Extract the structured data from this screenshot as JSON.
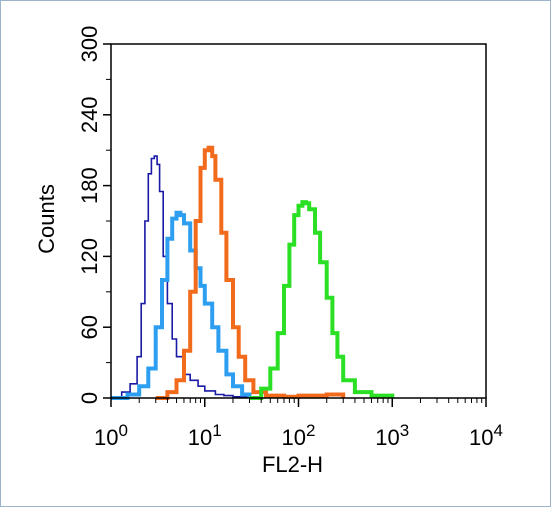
{
  "chart_data": {
    "type": "line",
    "title": "",
    "xlabel": "FL2-H",
    "ylabel": "Counts",
    "x_scale": "log",
    "xlim": [
      1,
      10000
    ],
    "ylim": [
      0,
      300
    ],
    "x_ticks": [
      {
        "value": 1,
        "base": "10",
        "exp": "0"
      },
      {
        "value": 10,
        "base": "10",
        "exp": "1"
      },
      {
        "value": 100,
        "base": "10",
        "exp": "2"
      },
      {
        "value": 1000,
        "base": "10",
        "exp": "3"
      },
      {
        "value": 10000,
        "base": "10",
        "exp": "4"
      }
    ],
    "y_ticks": [
      "0",
      "60",
      "120",
      "180",
      "240",
      "300"
    ],
    "grid": false,
    "legend": "none",
    "series": [
      {
        "color": "#1a1aa6",
        "x": [
          1.0,
          1.3,
          1.6,
          1.9,
          2.1,
          2.3,
          2.5,
          2.7,
          2.9,
          3.1,
          3.3,
          3.6,
          4.0,
          4.5,
          5.0,
          6.0,
          7.0,
          8.5,
          10,
          13,
          16,
          20,
          30
        ],
        "y": [
          0,
          5,
          12,
          35,
          80,
          150,
          190,
          203,
          205,
          198,
          175,
          120,
          80,
          50,
          35,
          20,
          15,
          10,
          6,
          3,
          2,
          1,
          0
        ]
      },
      {
        "color": "#2e9ff0",
        "x": [
          1.0,
          1.5,
          2.0,
          2.5,
          3.0,
          3.5,
          4.0,
          4.5,
          5.0,
          5.5,
          6.0,
          7.0,
          8.0,
          9.0,
          10,
          12,
          14,
          17,
          20,
          25,
          30
        ],
        "y": [
          0,
          3,
          10,
          25,
          60,
          100,
          135,
          152,
          157,
          155,
          148,
          125,
          110,
          95,
          80,
          60,
          40,
          20,
          10,
          3,
          0
        ]
      },
      {
        "color": "#f26b1d",
        "x": [
          3,
          4,
          5,
          6,
          7,
          8,
          9,
          10,
          11,
          12,
          13,
          15,
          17,
          20,
          23,
          27,
          33,
          45,
          70,
          100,
          200,
          300
        ],
        "y": [
          0,
          5,
          15,
          40,
          90,
          150,
          195,
          210,
          212,
          205,
          185,
          140,
          100,
          60,
          35,
          15,
          5,
          2,
          1,
          2,
          3,
          0
        ]
      },
      {
        "color": "#2be024",
        "x": [
          30,
          40,
          50,
          60,
          70,
          80,
          90,
          100,
          110,
          120,
          130,
          150,
          170,
          200,
          230,
          260,
          300,
          400,
          600,
          1000
        ],
        "y": [
          0,
          8,
          25,
          55,
          95,
          130,
          155,
          163,
          166,
          165,
          160,
          140,
          115,
          85,
          55,
          35,
          15,
          5,
          2,
          0
        ]
      }
    ]
  }
}
